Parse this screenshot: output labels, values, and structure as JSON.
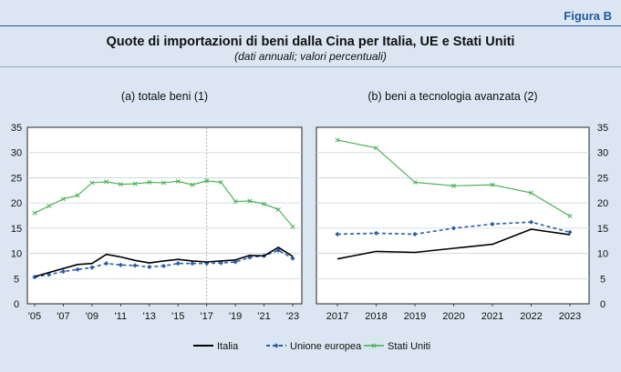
{
  "figure_label": "Figura B",
  "title": "Quote di importazioni di beni dalla Cina per Italia, UE e Stati Uniti",
  "subtitle": "(dati annuali; valori percentuali)",
  "colors": {
    "italia": "#000000",
    "ue": "#2b5ea7",
    "usa": "#3fae4a",
    "background": "#dbe6f2"
  },
  "legend": [
    "Italia",
    "Unione europea",
    "Stati Uniti"
  ],
  "chart_data": [
    {
      "type": "line",
      "title": "(a) totale beni (1)",
      "x": [
        2005,
        2006,
        2007,
        2008,
        2009,
        2010,
        2011,
        2012,
        2013,
        2014,
        2015,
        2016,
        2017,
        2018,
        2019,
        2020,
        2021,
        2022,
        2023
      ],
      "xtick_labels": [
        "'05",
        "'07",
        "'09",
        "'11",
        "'13",
        "'15",
        "'17",
        "'19",
        "'21",
        "'23"
      ],
      "xtick_values": [
        2005,
        2007,
        2009,
        2011,
        2013,
        2015,
        2017,
        2019,
        2021,
        2023
      ],
      "ylim": [
        0,
        35
      ],
      "yticks": [
        "0",
        "5",
        "10",
        "15",
        "20",
        "25",
        "30",
        "35"
      ],
      "y_axis_side": "left",
      "series": [
        {
          "name": "Italia",
          "values": [
            5.4,
            6.2,
            7.0,
            7.8,
            8.0,
            9.8,
            9.3,
            8.6,
            8.1,
            8.5,
            8.8,
            8.5,
            8.3,
            8.5,
            8.7,
            9.6,
            9.5,
            11.2,
            9.4
          ]
        },
        {
          "name": "Unione europea",
          "values": [
            5.3,
            5.8,
            6.4,
            6.8,
            7.2,
            8.0,
            7.7,
            7.6,
            7.3,
            7.5,
            8.0,
            8.0,
            8.0,
            8.1,
            8.3,
            9.2,
            9.5,
            10.6,
            9.0
          ]
        },
        {
          "name": "Stati Uniti",
          "values": [
            18.0,
            19.4,
            20.8,
            21.5,
            24.0,
            24.2,
            23.7,
            23.8,
            24.1,
            24.0,
            24.3,
            23.6,
            24.4,
            24.1,
            20.3,
            20.4,
            19.8,
            18.7,
            15.3
          ]
        }
      ]
    },
    {
      "type": "line",
      "title": "(b) beni a tecnologia avanzata (2)",
      "x": [
        2017,
        2018,
        2019,
        2020,
        2021,
        2022,
        2023
      ],
      "xtick_labels": [
        "2017",
        "2018",
        "2019",
        "2020",
        "2021",
        "2022",
        "2023"
      ],
      "xtick_values": [
        2017,
        2018,
        2019,
        2020,
        2021,
        2022,
        2023
      ],
      "ylim": [
        0,
        35
      ],
      "yticks": [
        "0",
        "5",
        "10",
        "15",
        "20",
        "25",
        "30",
        "35"
      ],
      "y_axis_side": "right",
      "series": [
        {
          "name": "Italia",
          "values": [
            8.9,
            10.4,
            10.2,
            11.0,
            11.8,
            14.8,
            13.7
          ]
        },
        {
          "name": "Unione europea",
          "values": [
            13.8,
            14.0,
            13.8,
            15.0,
            15.8,
            16.2,
            14.2
          ]
        },
        {
          "name": "Stati Uniti",
          "values": [
            32.5,
            30.9,
            24.1,
            23.4,
            23.6,
            22.0,
            17.4
          ]
        }
      ]
    }
  ]
}
